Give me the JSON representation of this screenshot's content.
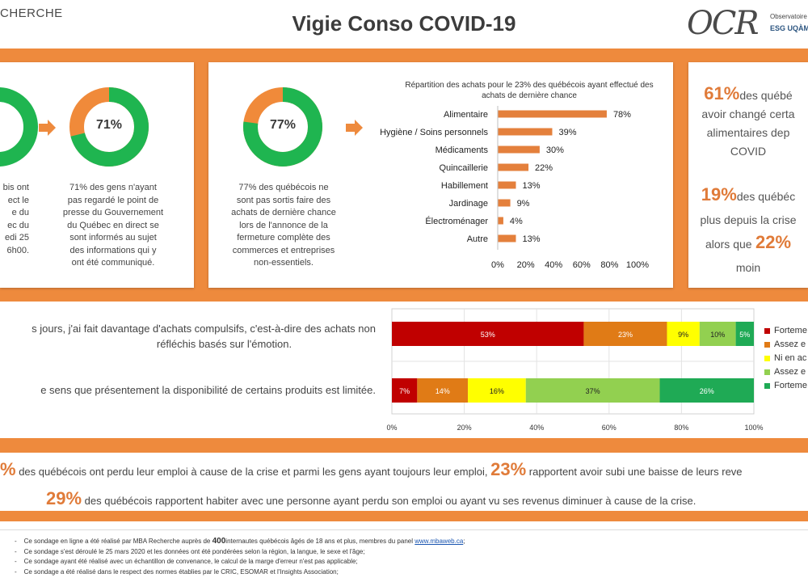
{
  "header": {
    "left_text": "CHERCHE",
    "title": "Vigie Conso COVID-19",
    "logo_main": "OCR",
    "logo_sub1": "Observatoire d",
    "logo_sub2": "ESG UQÀM"
  },
  "colors": {
    "orange": "#ee8a3d",
    "donut_green": "#1fb550",
    "donut_orange": "#f08a3a",
    "bar_orange": "#e4803c"
  },
  "card1": {
    "left_partial_lines": [
      "bis ont",
      "ect le",
      "e du",
      "ec du",
      "edi 25",
      "6h00."
    ],
    "donut_value": "71%",
    "donut_fraction": 0.71,
    "caption": [
      "71% des gens n'ayant",
      "pas regardé le point de",
      "presse du Gouvernement",
      "du Québec en direct se",
      "sont informés au sujet",
      "des informations qui y",
      "ont été communiqué."
    ]
  },
  "card2": {
    "donut_value": "77%",
    "donut_fraction": 0.77,
    "caption": [
      "77% des québécois ne",
      "sont pas sortis faire des",
      "achats de dernière chance",
      "lors de l'annonce de la",
      "fermeture complète des",
      "commerces et entreprises",
      "non-essentiels."
    ]
  },
  "card3": {
    "stat1_value": "61%",
    "stat1_lines": [
      "des québé",
      "avoir changé certa",
      "alimentaires dep",
      "COVID"
    ],
    "stat2_value": "19%",
    "stat2_lines": [
      "des québéc",
      "plus depuis la crise",
      "alors que"
    ],
    "stat3_value": "22%",
    "stat3_line": "moin"
  },
  "questions": {
    "q1": [
      "s jours, j'ai fait davantage d'achats compulsifs, c'est-à-dire des achats non",
      "réfléchis basés sur l'émotion."
    ],
    "q2": "e sens que présentement la disponibilité de certains produits est limitée."
  },
  "legend": [
    "Forteme",
    "Assez e",
    "Ni en ac",
    "Assez e",
    "Forteme"
  ],
  "bottom": {
    "line1_prefix": "%",
    "line1_text1": "des québécois ont perdu leur emploi à cause de la crise et parmi les gens ayant toujours leur emploi,",
    "line1_value": "23%",
    "line1_text2": "rapportent avoir subi une baisse de leurs reve",
    "line2_value": "29%",
    "line2_text": "des québécois rapportent habiter avec une personne ayant perdu son emploi ou ayant vu ses revenus diminuer à cause de la crise."
  },
  "footer": {
    "item1_a": "Ce sondage en ligne a été réalisé par MBA Recherche auprès de",
    "item1_bold": "400",
    "item1_b": "internautes québécois âgés de 18 ans et plus, membres du panel",
    "item1_link": "www.mbaweb.ca",
    "item1_end": ";",
    "item2": "Ce sondage s'est déroulé le 25 mars 2020 et les données ont été pondérées selon la région, la langue, le sexe et l'âge;",
    "item3": "Ce sondage ayant été réalisé avec un échantillon de convenance, le calcul de la marge d'erreur n'est pas applicable;",
    "item4": "Ce sondage a été réalisé dans le respect des normes établies par le CRIC, ESOMAR et l'Insights Association;"
  },
  "chart_data": [
    {
      "type": "bar",
      "orientation": "horizontal",
      "title": "Répartition des achats pour le 23% des québécois ayant effectué des achats de dernière chance",
      "categories": [
        "Alimentaire",
        "Hygiène / Soins personnels",
        "Médicaments",
        "Quincaillerie",
        "Habillement",
        "Jardinage",
        "Électroménager",
        "Autre"
      ],
      "values": [
        78,
        39,
        30,
        22,
        13,
        9,
        4,
        13
      ],
      "value_labels": [
        "78%",
        "39%",
        "30%",
        "22%",
        "13%",
        "9%",
        "4%",
        "13%"
      ],
      "xlim": [
        0,
        100
      ],
      "xticks": [
        "0%",
        "20%",
        "40%",
        "60%",
        "80%",
        "100%"
      ],
      "color": "#e4803c",
      "grid": false
    },
    {
      "type": "bar",
      "orientation": "horizontal",
      "stacked": true,
      "series": [
        {
          "color": "#c00000",
          "values": [
            53,
            7
          ],
          "labels": [
            "53%",
            "7%"
          ]
        },
        {
          "color": "#e07b16",
          "values": [
            23,
            14
          ],
          "labels": [
            "23%",
            "14%"
          ]
        },
        {
          "color": "#ffff00",
          "values": [
            9,
            16
          ],
          "labels": [
            "9%",
            "16%"
          ]
        },
        {
          "color": "#92d050",
          "values": [
            10,
            37
          ],
          "labels": [
            "10%",
            "37%"
          ]
        },
        {
          "color": "#1faa55",
          "values": [
            5,
            26
          ],
          "labels": [
            "5%",
            "26%"
          ]
        }
      ],
      "xlim": [
        0,
        100
      ],
      "xticks": [
        "0%",
        "20%",
        "40%",
        "60%",
        "80%",
        "100%"
      ],
      "legend_position": "right",
      "grid": true
    }
  ]
}
